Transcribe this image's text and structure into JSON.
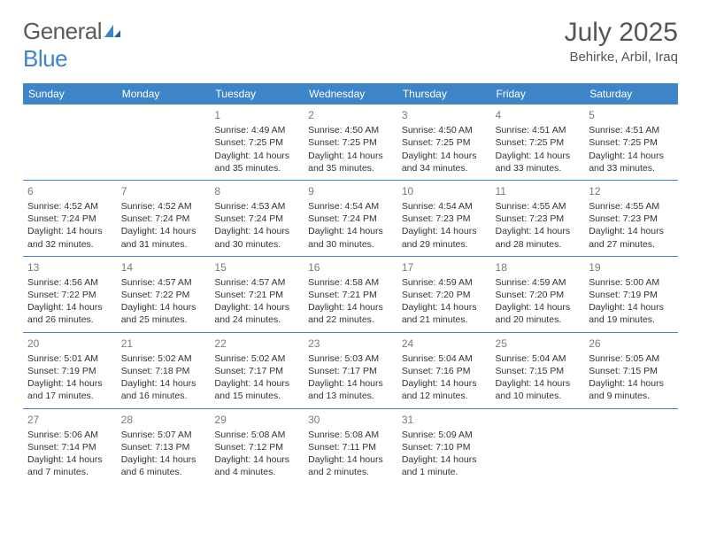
{
  "logo": {
    "word1": "General",
    "word2": "Blue"
  },
  "title": "July 2025",
  "location": "Behirke, Arbil, Iraq",
  "colors": {
    "header_bg": "#3d85c6",
    "header_text": "#ffffff",
    "rule": "#3d85c6",
    "body_text": "#333333",
    "daynum": "#7a7a7a",
    "logo_gray": "#5a5a5a",
    "logo_blue": "#3d85c6",
    "background": "#ffffff"
  },
  "weekdays": [
    "Sunday",
    "Monday",
    "Tuesday",
    "Wednesday",
    "Thursday",
    "Friday",
    "Saturday"
  ],
  "weeks": [
    [
      null,
      null,
      {
        "n": "1",
        "sr": "4:49 AM",
        "ss": "7:25 PM",
        "dl": "14 hours and 35 minutes."
      },
      {
        "n": "2",
        "sr": "4:50 AM",
        "ss": "7:25 PM",
        "dl": "14 hours and 35 minutes."
      },
      {
        "n": "3",
        "sr": "4:50 AM",
        "ss": "7:25 PM",
        "dl": "14 hours and 34 minutes."
      },
      {
        "n": "4",
        "sr": "4:51 AM",
        "ss": "7:25 PM",
        "dl": "14 hours and 33 minutes."
      },
      {
        "n": "5",
        "sr": "4:51 AM",
        "ss": "7:25 PM",
        "dl": "14 hours and 33 minutes."
      }
    ],
    [
      {
        "n": "6",
        "sr": "4:52 AM",
        "ss": "7:24 PM",
        "dl": "14 hours and 32 minutes."
      },
      {
        "n": "7",
        "sr": "4:52 AM",
        "ss": "7:24 PM",
        "dl": "14 hours and 31 minutes."
      },
      {
        "n": "8",
        "sr": "4:53 AM",
        "ss": "7:24 PM",
        "dl": "14 hours and 30 minutes."
      },
      {
        "n": "9",
        "sr": "4:54 AM",
        "ss": "7:24 PM",
        "dl": "14 hours and 30 minutes."
      },
      {
        "n": "10",
        "sr": "4:54 AM",
        "ss": "7:23 PM",
        "dl": "14 hours and 29 minutes."
      },
      {
        "n": "11",
        "sr": "4:55 AM",
        "ss": "7:23 PM",
        "dl": "14 hours and 28 minutes."
      },
      {
        "n": "12",
        "sr": "4:55 AM",
        "ss": "7:23 PM",
        "dl": "14 hours and 27 minutes."
      }
    ],
    [
      {
        "n": "13",
        "sr": "4:56 AM",
        "ss": "7:22 PM",
        "dl": "14 hours and 26 minutes."
      },
      {
        "n": "14",
        "sr": "4:57 AM",
        "ss": "7:22 PM",
        "dl": "14 hours and 25 minutes."
      },
      {
        "n": "15",
        "sr": "4:57 AM",
        "ss": "7:21 PM",
        "dl": "14 hours and 24 minutes."
      },
      {
        "n": "16",
        "sr": "4:58 AM",
        "ss": "7:21 PM",
        "dl": "14 hours and 22 minutes."
      },
      {
        "n": "17",
        "sr": "4:59 AM",
        "ss": "7:20 PM",
        "dl": "14 hours and 21 minutes."
      },
      {
        "n": "18",
        "sr": "4:59 AM",
        "ss": "7:20 PM",
        "dl": "14 hours and 20 minutes."
      },
      {
        "n": "19",
        "sr": "5:00 AM",
        "ss": "7:19 PM",
        "dl": "14 hours and 19 minutes."
      }
    ],
    [
      {
        "n": "20",
        "sr": "5:01 AM",
        "ss": "7:19 PM",
        "dl": "14 hours and 17 minutes."
      },
      {
        "n": "21",
        "sr": "5:02 AM",
        "ss": "7:18 PM",
        "dl": "14 hours and 16 minutes."
      },
      {
        "n": "22",
        "sr": "5:02 AM",
        "ss": "7:17 PM",
        "dl": "14 hours and 15 minutes."
      },
      {
        "n": "23",
        "sr": "5:03 AM",
        "ss": "7:17 PM",
        "dl": "14 hours and 13 minutes."
      },
      {
        "n": "24",
        "sr": "5:04 AM",
        "ss": "7:16 PM",
        "dl": "14 hours and 12 minutes."
      },
      {
        "n": "25",
        "sr": "5:04 AM",
        "ss": "7:15 PM",
        "dl": "14 hours and 10 minutes."
      },
      {
        "n": "26",
        "sr": "5:05 AM",
        "ss": "7:15 PM",
        "dl": "14 hours and 9 minutes."
      }
    ],
    [
      {
        "n": "27",
        "sr": "5:06 AM",
        "ss": "7:14 PM",
        "dl": "14 hours and 7 minutes."
      },
      {
        "n": "28",
        "sr": "5:07 AM",
        "ss": "7:13 PM",
        "dl": "14 hours and 6 minutes."
      },
      {
        "n": "29",
        "sr": "5:08 AM",
        "ss": "7:12 PM",
        "dl": "14 hours and 4 minutes."
      },
      {
        "n": "30",
        "sr": "5:08 AM",
        "ss": "7:11 PM",
        "dl": "14 hours and 2 minutes."
      },
      {
        "n": "31",
        "sr": "5:09 AM",
        "ss": "7:10 PM",
        "dl": "14 hours and 1 minute."
      },
      null,
      null
    ]
  ],
  "labels": {
    "sunrise": "Sunrise:",
    "sunset": "Sunset:",
    "daylight": "Daylight:"
  }
}
